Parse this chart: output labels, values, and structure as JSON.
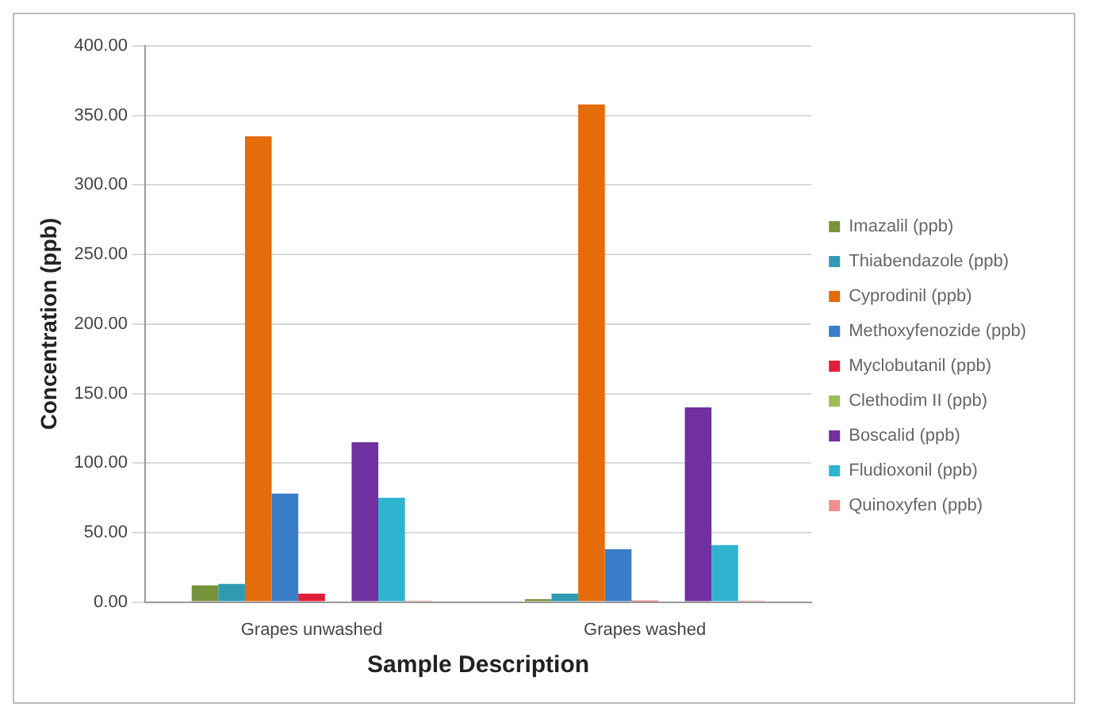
{
  "chart_data": {
    "type": "bar",
    "xlabel": "Sample Description",
    "ylabel": "Concentration (ppb)",
    "categories": [
      "Grapes unwashed",
      "Grapes washed"
    ],
    "series": [
      {
        "name": "Imazalil (ppb)",
        "color": "#77933c",
        "values": [
          12,
          2
        ]
      },
      {
        "name": "Thiabendazole (ppb)",
        "color": "#2f9bb3",
        "values": [
          13,
          6
        ]
      },
      {
        "name": "Cyprodinil (ppb)",
        "color": "#e46c0a",
        "values": [
          335,
          358
        ]
      },
      {
        "name": "Methoxyfenozide (ppb)",
        "color": "#3a7dc9",
        "values": [
          78,
          38
        ]
      },
      {
        "name": "Myclobutanil (ppb)",
        "color": "#e0203a",
        "values": [
          6,
          1
        ]
      },
      {
        "name": "Clethodim II (ppb)",
        "color": "#9bbb59",
        "values": [
          0,
          0
        ]
      },
      {
        "name": "Boscalid (ppb)",
        "color": "#7030a0",
        "values": [
          115,
          140
        ]
      },
      {
        "name": "Fludioxonil (ppb)",
        "color": "#2fb4d0",
        "values": [
          75,
          41
        ]
      },
      {
        "name": "Quinoxyfen (ppb)",
        "color": "#f28e8e",
        "values": [
          1,
          1
        ]
      }
    ],
    "ylim": [
      0,
      400
    ],
    "yticks": [
      {
        "value": 0,
        "label": "0.00"
      },
      {
        "value": 50,
        "label": "50.00"
      },
      {
        "value": 100,
        "label": "100.00"
      },
      {
        "value": 150,
        "label": "150.00"
      },
      {
        "value": 200,
        "label": "200.00"
      },
      {
        "value": 250,
        "label": "250.00"
      },
      {
        "value": 300,
        "label": "300.00"
      },
      {
        "value": 350,
        "label": "350.00"
      },
      {
        "value": 400,
        "label": "400.00"
      }
    ],
    "grid": "y",
    "legend": "right"
  }
}
